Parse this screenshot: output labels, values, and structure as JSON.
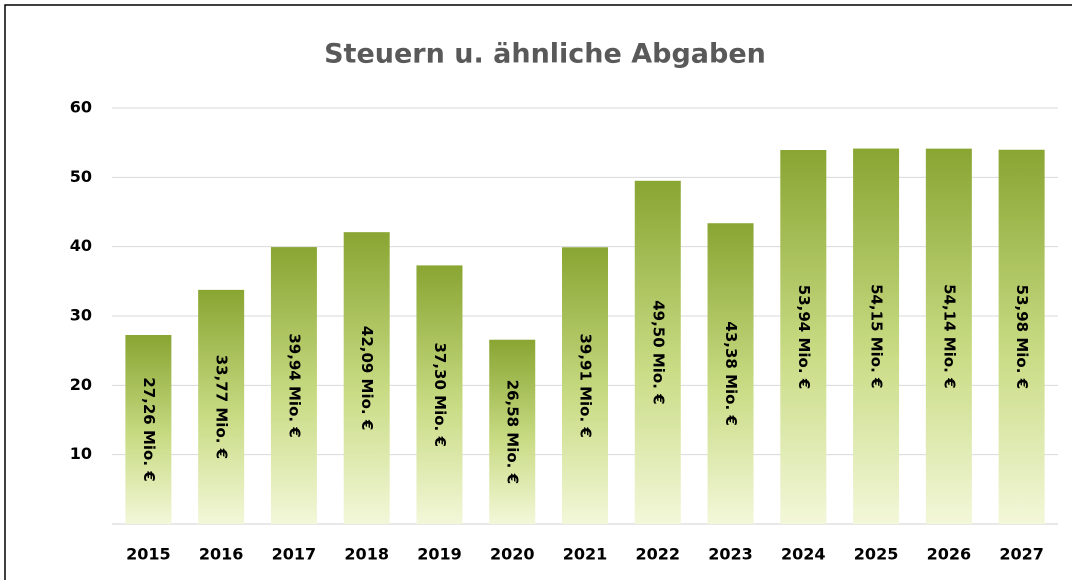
{
  "chart_data": {
    "type": "bar",
    "title": "Steuern u. ähnliche Abgaben",
    "categories": [
      "2015",
      "2016",
      "2017",
      "2018",
      "2019",
      "2020",
      "2021",
      "2022",
      "2023",
      "2024",
      "2025",
      "2026",
      "2027"
    ],
    "values": [
      27.26,
      33.77,
      39.94,
      42.09,
      37.3,
      26.58,
      39.91,
      49.5,
      43.38,
      53.94,
      54.15,
      54.14,
      53.98
    ],
    "value_labels": [
      "27,26 Mio. €",
      "33,77 Mio. €",
      "39,94 Mio. €",
      "42,09 Mio. €",
      "37,30 Mio. €",
      "26,58 Mio. €",
      "39,91 Mio. €",
      "49,50 Mio. €",
      "43,38 Mio. €",
      "53,94 Mio. €",
      "54,15 Mio. €",
      "54,14 Mio. €",
      "53,98 Mio. €"
    ],
    "color": "#8aa63a",
    "ylim": [
      0,
      60
    ],
    "yticks": [
      10,
      20,
      30,
      40,
      50,
      60
    ],
    "grid": true
  }
}
